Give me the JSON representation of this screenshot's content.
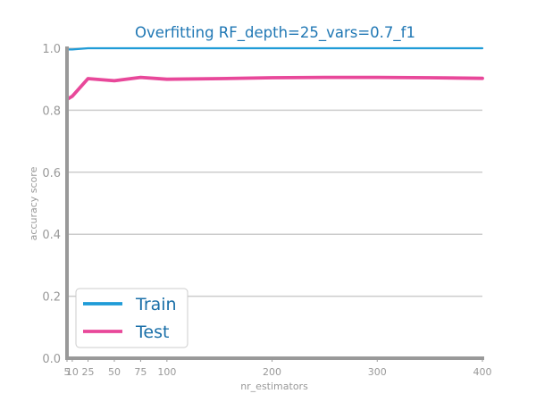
{
  "chart_data": {
    "type": "line",
    "title": "Overfitting RF_depth=25_vars=0.7_f1",
    "xlabel": "nr_estimators",
    "ylabel": "accuracy score",
    "xlim": [
      5,
      400
    ],
    "ylim": [
      0.0,
      1.0
    ],
    "x_ticks": [
      5,
      10,
      25,
      50,
      75,
      100,
      200,
      300,
      400
    ],
    "y_ticks": [
      0.0,
      0.2,
      0.4,
      0.6,
      0.8,
      1.0
    ],
    "y_tick_labels": [
      "0.0",
      "0.2",
      "0.4",
      "0.6",
      "0.8",
      "1.0"
    ],
    "grid": "horizontal",
    "legend_position": "lower-left",
    "x": [
      5,
      10,
      25,
      50,
      75,
      100,
      150,
      200,
      250,
      300,
      350,
      400
    ],
    "series": [
      {
        "name": "Train",
        "color": "#1f9bd7",
        "values": [
          0.996,
          0.996,
          1.0,
          1.0,
          1.0,
          1.0,
          1.0,
          1.0,
          1.0,
          1.0,
          1.0,
          1.0
        ]
      },
      {
        "name": "Test",
        "color": "#e8489a",
        "values": [
          0.835,
          0.845,
          0.902,
          0.895,
          0.906,
          0.9,
          0.902,
          0.905,
          0.906,
          0.906,
          0.905,
          0.903
        ]
      }
    ]
  }
}
